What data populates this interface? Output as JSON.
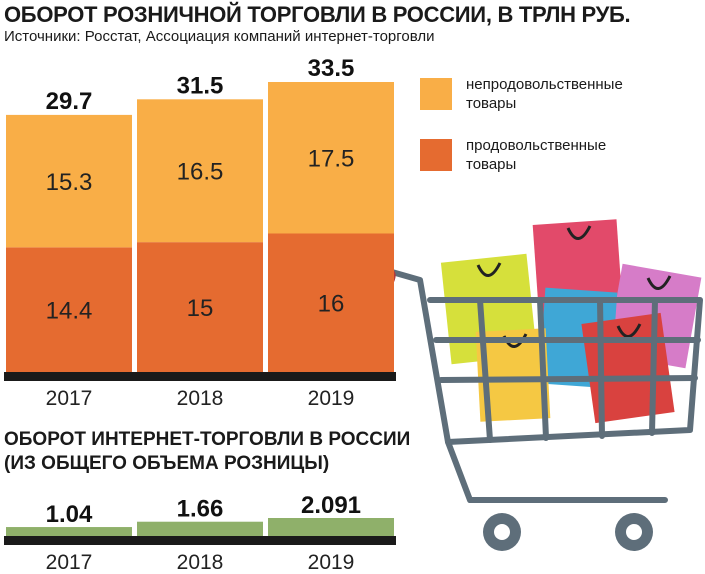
{
  "title": "ОБОРОТ РОЗНИЧНОЙ ТОРГОВЛИ В РОССИИ, В ТРЛН РУБ.",
  "source": "Источники: Росстат,  Ассоциация компаний интернет-торговли",
  "title2_line1": "ОБОРОТ ИНТЕРНЕТ-ТОРГОВЛИ В РОССИИ",
  "title2_line2": "(ИЗ ОБЩЕГО ОБЪЕМА РОЗНИЦЫ)",
  "legend": [
    {
      "label_line1": "непродовольственные",
      "label_line2": "товары",
      "color": "#F9AE47"
    },
    {
      "label_line1": "продовольственные",
      "label_line2": "товары",
      "color": "#E56B30"
    }
  ],
  "chart_data": [
    {
      "type": "bar",
      "stacked": true,
      "title": "ОБОРОТ РОЗНИЧНОЙ ТОРГОВЛИ В РОССИИ, В ТРЛН РУБ.",
      "categories": [
        "2017",
        "2018",
        "2019"
      ],
      "totals": [
        "29.7",
        "31.5",
        "33.5"
      ],
      "series": [
        {
          "name": "продовольственные товары",
          "values": [
            14.4,
            15,
            16
          ],
          "labels": [
            "14.4",
            "15",
            "16"
          ],
          "color": "#E56B30"
        },
        {
          "name": "непродовольственные товары",
          "values": [
            15.3,
            16.5,
            17.5
          ],
          "labels": [
            "15.3",
            "16.5",
            "17.5"
          ],
          "color": "#F9AE47"
        }
      ],
      "ylim": [
        0,
        33.5
      ]
    },
    {
      "type": "bar",
      "title": "ОБОРОТ ИНТЕРНЕТ-ТОРГОВЛИ В РОССИИ (ИЗ ОБЩЕГО ОБЪЕМА РОЗНИЦЫ)",
      "categories": [
        "2017",
        "2018",
        "2019"
      ],
      "values": [
        1.04,
        1.66,
        2.091
      ],
      "labels": [
        "1.04",
        "1.66",
        "2.091"
      ],
      "color": "#8FB06A"
    }
  ],
  "illustration": {
    "icon": "shopping-cart-with-bags-icon",
    "cart_color": "#5E6E7A",
    "handle_color": "#B23A3A",
    "bag_colors": [
      "#D6E03B",
      "#E24A6A",
      "#3FA7D6",
      "#D67CC8",
      "#F5C843",
      "#D9423F"
    ]
  }
}
